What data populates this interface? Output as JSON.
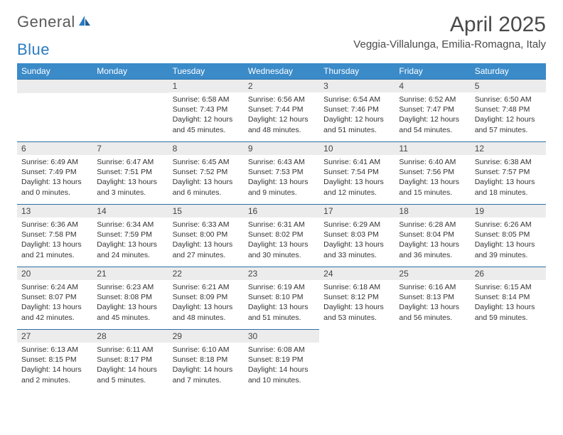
{
  "branding": {
    "logo_text_1": "General",
    "logo_text_2": "Blue",
    "logo_color_gray": "#5a5a5a",
    "logo_color_blue": "#2a7bbf"
  },
  "header": {
    "month_title": "April 2025",
    "location": "Veggia-Villalunga, Emilia-Romagna, Italy"
  },
  "colors": {
    "header_bg": "#3b8bc9",
    "header_text": "#ffffff",
    "daynum_bg": "#ececec",
    "border": "#2a6ea5",
    "body_text": "#333333",
    "background": "#ffffff"
  },
  "weekdays": [
    "Sunday",
    "Monday",
    "Tuesday",
    "Wednesday",
    "Thursday",
    "Friday",
    "Saturday"
  ],
  "grid": {
    "leading_blanks": 2,
    "days": [
      {
        "n": "1",
        "sunrise": "Sunrise: 6:58 AM",
        "sunset": "Sunset: 7:43 PM",
        "daylight": "Daylight: 12 hours and 45 minutes."
      },
      {
        "n": "2",
        "sunrise": "Sunrise: 6:56 AM",
        "sunset": "Sunset: 7:44 PM",
        "daylight": "Daylight: 12 hours and 48 minutes."
      },
      {
        "n": "3",
        "sunrise": "Sunrise: 6:54 AM",
        "sunset": "Sunset: 7:46 PM",
        "daylight": "Daylight: 12 hours and 51 minutes."
      },
      {
        "n": "4",
        "sunrise": "Sunrise: 6:52 AM",
        "sunset": "Sunset: 7:47 PM",
        "daylight": "Daylight: 12 hours and 54 minutes."
      },
      {
        "n": "5",
        "sunrise": "Sunrise: 6:50 AM",
        "sunset": "Sunset: 7:48 PM",
        "daylight": "Daylight: 12 hours and 57 minutes."
      },
      {
        "n": "6",
        "sunrise": "Sunrise: 6:49 AM",
        "sunset": "Sunset: 7:49 PM",
        "daylight": "Daylight: 13 hours and 0 minutes."
      },
      {
        "n": "7",
        "sunrise": "Sunrise: 6:47 AM",
        "sunset": "Sunset: 7:51 PM",
        "daylight": "Daylight: 13 hours and 3 minutes."
      },
      {
        "n": "8",
        "sunrise": "Sunrise: 6:45 AM",
        "sunset": "Sunset: 7:52 PM",
        "daylight": "Daylight: 13 hours and 6 minutes."
      },
      {
        "n": "9",
        "sunrise": "Sunrise: 6:43 AM",
        "sunset": "Sunset: 7:53 PM",
        "daylight": "Daylight: 13 hours and 9 minutes."
      },
      {
        "n": "10",
        "sunrise": "Sunrise: 6:41 AM",
        "sunset": "Sunset: 7:54 PM",
        "daylight": "Daylight: 13 hours and 12 minutes."
      },
      {
        "n": "11",
        "sunrise": "Sunrise: 6:40 AM",
        "sunset": "Sunset: 7:56 PM",
        "daylight": "Daylight: 13 hours and 15 minutes."
      },
      {
        "n": "12",
        "sunrise": "Sunrise: 6:38 AM",
        "sunset": "Sunset: 7:57 PM",
        "daylight": "Daylight: 13 hours and 18 minutes."
      },
      {
        "n": "13",
        "sunrise": "Sunrise: 6:36 AM",
        "sunset": "Sunset: 7:58 PM",
        "daylight": "Daylight: 13 hours and 21 minutes."
      },
      {
        "n": "14",
        "sunrise": "Sunrise: 6:34 AM",
        "sunset": "Sunset: 7:59 PM",
        "daylight": "Daylight: 13 hours and 24 minutes."
      },
      {
        "n": "15",
        "sunrise": "Sunrise: 6:33 AM",
        "sunset": "Sunset: 8:00 PM",
        "daylight": "Daylight: 13 hours and 27 minutes."
      },
      {
        "n": "16",
        "sunrise": "Sunrise: 6:31 AM",
        "sunset": "Sunset: 8:02 PM",
        "daylight": "Daylight: 13 hours and 30 minutes."
      },
      {
        "n": "17",
        "sunrise": "Sunrise: 6:29 AM",
        "sunset": "Sunset: 8:03 PM",
        "daylight": "Daylight: 13 hours and 33 minutes."
      },
      {
        "n": "18",
        "sunrise": "Sunrise: 6:28 AM",
        "sunset": "Sunset: 8:04 PM",
        "daylight": "Daylight: 13 hours and 36 minutes."
      },
      {
        "n": "19",
        "sunrise": "Sunrise: 6:26 AM",
        "sunset": "Sunset: 8:05 PM",
        "daylight": "Daylight: 13 hours and 39 minutes."
      },
      {
        "n": "20",
        "sunrise": "Sunrise: 6:24 AM",
        "sunset": "Sunset: 8:07 PM",
        "daylight": "Daylight: 13 hours and 42 minutes."
      },
      {
        "n": "21",
        "sunrise": "Sunrise: 6:23 AM",
        "sunset": "Sunset: 8:08 PM",
        "daylight": "Daylight: 13 hours and 45 minutes."
      },
      {
        "n": "22",
        "sunrise": "Sunrise: 6:21 AM",
        "sunset": "Sunset: 8:09 PM",
        "daylight": "Daylight: 13 hours and 48 minutes."
      },
      {
        "n": "23",
        "sunrise": "Sunrise: 6:19 AM",
        "sunset": "Sunset: 8:10 PM",
        "daylight": "Daylight: 13 hours and 51 minutes."
      },
      {
        "n": "24",
        "sunrise": "Sunrise: 6:18 AM",
        "sunset": "Sunset: 8:12 PM",
        "daylight": "Daylight: 13 hours and 53 minutes."
      },
      {
        "n": "25",
        "sunrise": "Sunrise: 6:16 AM",
        "sunset": "Sunset: 8:13 PM",
        "daylight": "Daylight: 13 hours and 56 minutes."
      },
      {
        "n": "26",
        "sunrise": "Sunrise: 6:15 AM",
        "sunset": "Sunset: 8:14 PM",
        "daylight": "Daylight: 13 hours and 59 minutes."
      },
      {
        "n": "27",
        "sunrise": "Sunrise: 6:13 AM",
        "sunset": "Sunset: 8:15 PM",
        "daylight": "Daylight: 14 hours and 2 minutes."
      },
      {
        "n": "28",
        "sunrise": "Sunrise: 6:11 AM",
        "sunset": "Sunset: 8:17 PM",
        "daylight": "Daylight: 14 hours and 5 minutes."
      },
      {
        "n": "29",
        "sunrise": "Sunrise: 6:10 AM",
        "sunset": "Sunset: 8:18 PM",
        "daylight": "Daylight: 14 hours and 7 minutes."
      },
      {
        "n": "30",
        "sunrise": "Sunrise: 6:08 AM",
        "sunset": "Sunset: 8:19 PM",
        "daylight": "Daylight: 14 hours and 10 minutes."
      }
    ]
  }
}
